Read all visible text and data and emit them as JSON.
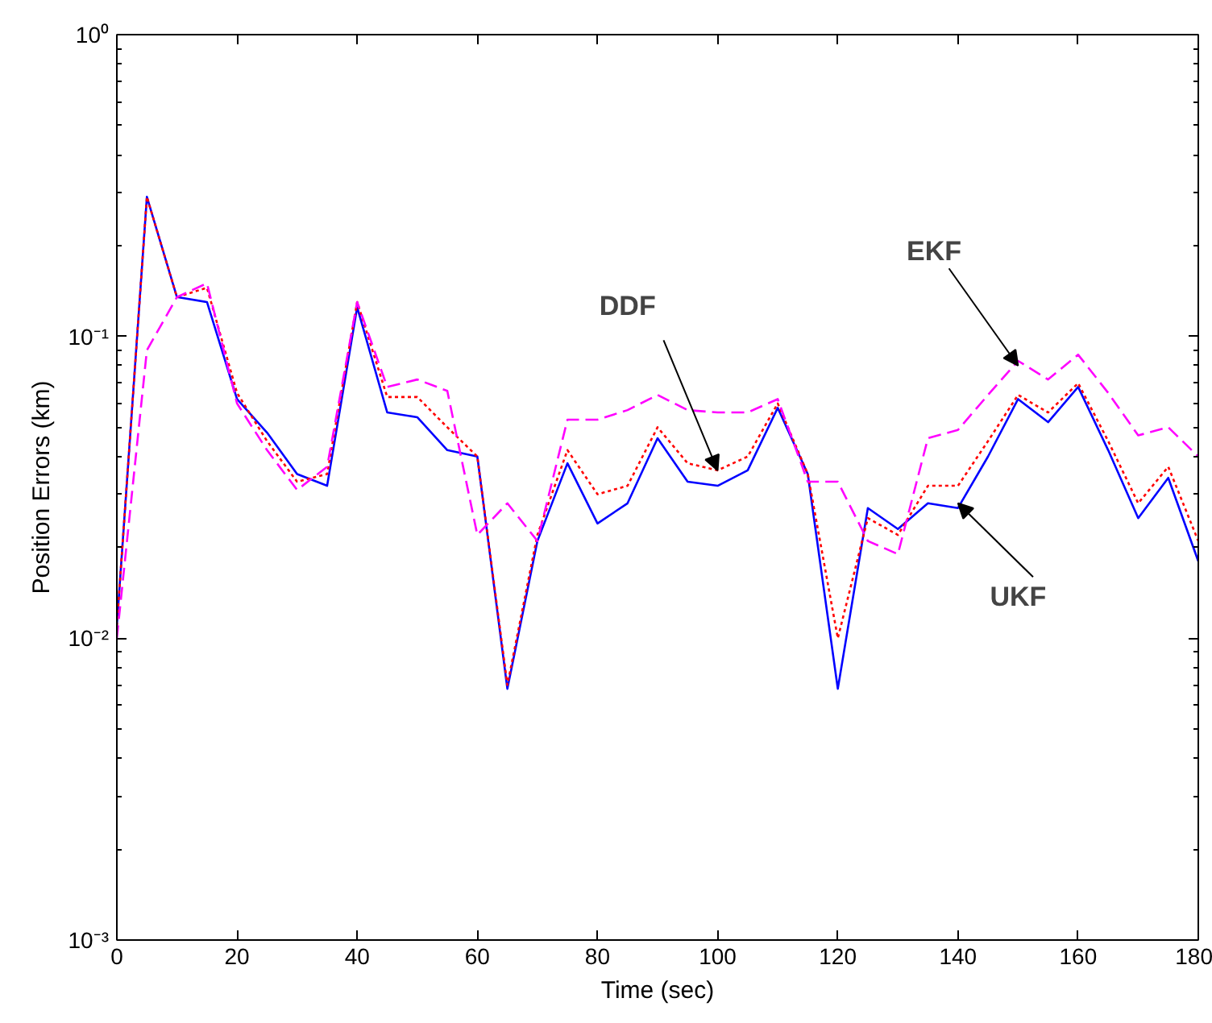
{
  "chart_data": {
    "type": "line",
    "xlabel": "Time (sec)",
    "ylabel": "Position Errors (km)",
    "x": [
      0,
      5,
      10,
      15,
      20,
      25,
      30,
      35,
      40,
      45,
      50,
      55,
      60,
      65,
      70,
      75,
      80,
      85,
      90,
      95,
      100,
      105,
      110,
      115,
      120,
      125,
      130,
      135,
      140,
      145,
      150,
      155,
      160,
      165,
      170,
      175,
      180
    ],
    "series": [
      {
        "color": "#0000ff",
        "line_style": "solid",
        "values": [
          0.011,
          0.29,
          0.135,
          0.13,
          0.062,
          0.048,
          0.035,
          0.032,
          0.125,
          0.056,
          0.054,
          0.042,
          0.04,
          0.0068,
          0.021,
          0.038,
          0.024,
          0.028,
          0.046,
          0.033,
          0.032,
          0.036,
          0.058,
          0.035,
          0.0068,
          0.027,
          0.023,
          0.028,
          0.027,
          0.04,
          0.062,
          0.052,
          0.068,
          0.042,
          0.025,
          0.034,
          0.018
        ]
      },
      {
        "color": "#ff0000",
        "line_style": "dotted",
        "values": [
          0.011,
          0.29,
          0.135,
          0.145,
          0.065,
          0.045,
          0.033,
          0.035,
          0.13,
          0.063,
          0.063,
          0.05,
          0.04,
          0.007,
          0.022,
          0.042,
          0.03,
          0.032,
          0.05,
          0.038,
          0.036,
          0.04,
          0.06,
          0.035,
          0.01,
          0.025,
          0.022,
          0.032,
          0.032,
          0.045,
          0.064,
          0.056,
          0.07,
          0.045,
          0.028,
          0.037,
          0.021
        ]
      },
      {
        "color": "#ff00ff",
        "line_style": "dashed",
        "values": [
          0.01,
          0.09,
          0.135,
          0.15,
          0.06,
          0.042,
          0.031,
          0.037,
          0.13,
          0.068,
          0.072,
          0.066,
          0.022,
          0.028,
          0.021,
          0.053,
          0.053,
          0.057,
          0.064,
          0.057,
          0.056,
          0.056,
          0.062,
          0.033,
          0.033,
          0.021,
          0.019,
          0.046,
          0.049,
          0.064,
          0.083,
          0.072,
          0.087,
          0.065,
          0.047,
          0.05,
          0.04
        ]
      }
    ],
    "annotations": [
      {
        "text": "DDF",
        "x": 100,
        "y": 0.036
      },
      {
        "text": "EKF",
        "x": 150,
        "y": 0.08
      },
      {
        "text": "UKF",
        "x": 140,
        "y": 0.028
      }
    ],
    "xlim": [
      0,
      180
    ],
    "xticks": [
      0,
      20,
      40,
      60,
      80,
      100,
      120,
      140,
      160,
      180
    ],
    "ylim": [
      0.001,
      1
    ],
    "yticks": [
      {
        "value": 0.001,
        "label": "10⁻³"
      },
      {
        "value": 0.01,
        "label": "10⁻²"
      },
      {
        "value": 0.1,
        "label": "10⁻¹"
      },
      {
        "value": 1,
        "label": "10⁰"
      }
    ],
    "log": "y"
  }
}
